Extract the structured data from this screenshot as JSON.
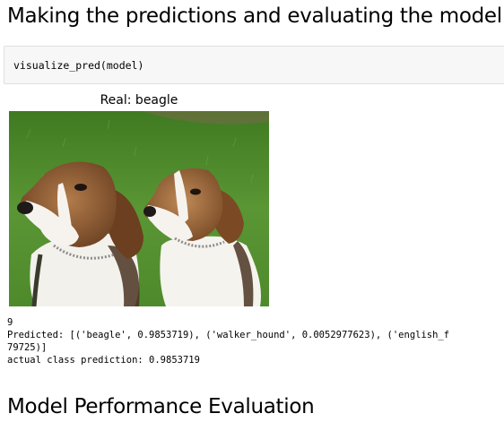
{
  "section_heading": "Making the predictions and evaluating the model",
  "code_cell": {
    "code": "visualize_pred(model)"
  },
  "plot": {
    "title": "Real: beagle"
  },
  "output": {
    "lines": [
      "9",
      "Predicted: [('beagle', 0.9853719), ('walker_hound', 0.0052977623), ('english_f",
      "79725)]",
      "actual class prediction: 0.9853719"
    ]
  },
  "next_heading": "Model Performance Evaluation",
  "colors": {
    "cell_background": "#f7f7f7",
    "cell_border": "#e0e0e0",
    "grass": "#4f8a2e"
  }
}
